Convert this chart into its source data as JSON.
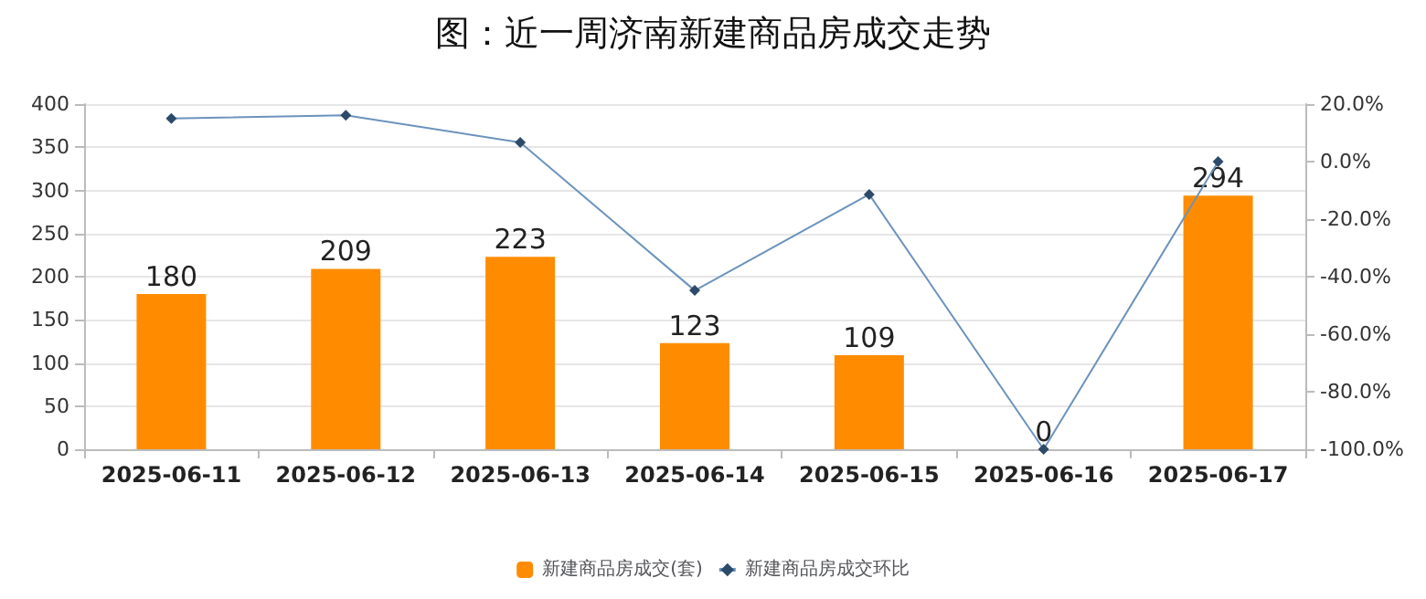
{
  "chart_data": {
    "type": "bar",
    "title": "图：近一周济南新建商品房成交走势",
    "categories": [
      "2025-06-11",
      "2025-06-12",
      "2025-06-13",
      "2025-06-14",
      "2025-06-15",
      "2025-06-16",
      "2025-06-17"
    ],
    "series": [
      {
        "name": "新建商品房成交(套)",
        "color": "#ff8c00",
        "values": [
          180,
          209,
          223,
          123,
          109,
          0,
          294
        ],
        "data_labels": true
      },
      {
        "name": "新建商品房成交环比",
        "type": "line",
        "axis": "y2",
        "color": "#6b93bd",
        "marker": "diamond",
        "values": [
          15.0,
          16.1,
          6.7,
          -44.8,
          -11.4,
          -100.0,
          0.0
        ]
      }
    ],
    "ylim": [
      0,
      400
    ],
    "yticks": [
      0,
      50,
      100,
      150,
      200,
      250,
      300,
      350,
      400
    ],
    "y2lim": [
      -100,
      20
    ],
    "y2ticks": [
      {
        "value": -100,
        "label": "-100.0%"
      },
      {
        "value": -80,
        "label": "-80.0%"
      },
      {
        "value": -60,
        "label": "-60.0%"
      },
      {
        "value": -40,
        "label": "-40.0%"
      },
      {
        "value": -20,
        "label": "-20.0%"
      },
      {
        "value": 0,
        "label": "0.0%"
      },
      {
        "value": 20,
        "label": "20.0%"
      }
    ],
    "grid": "y",
    "legend": "bottom"
  }
}
